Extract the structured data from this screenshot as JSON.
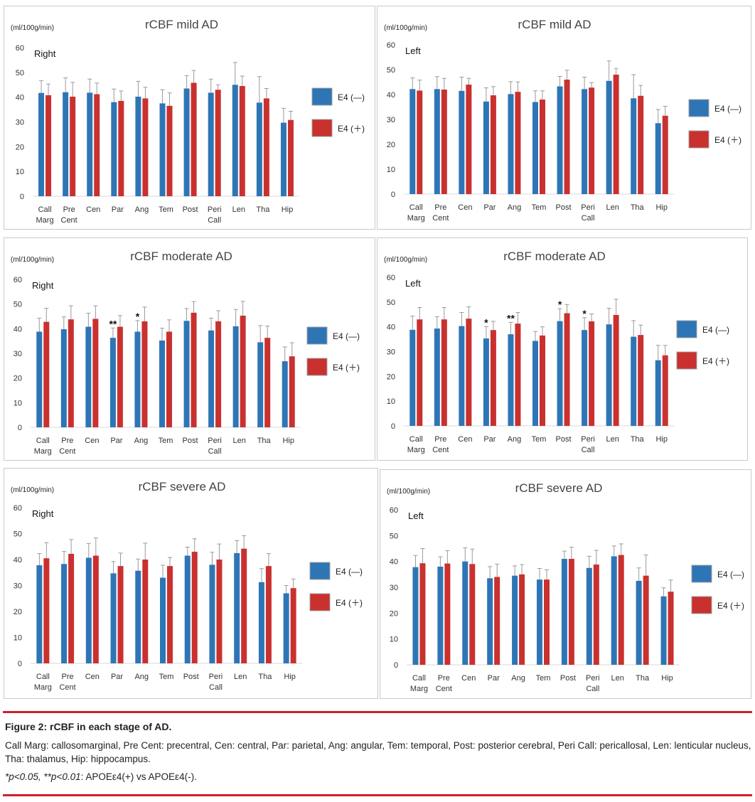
{
  "colors": {
    "e4_neg": "#2e75b6",
    "e4_pos": "#c9312f",
    "error_bar": "#9a9a9a",
    "axis": "#d9d9d9",
    "caption_rule": "#d0202a"
  },
  "chart_data": [
    {
      "type": "bar",
      "title": "rCBF mild AD",
      "unit": "(ml/100g/min)",
      "side": "Right",
      "ylim": [
        0,
        60
      ],
      "yticks": [
        0,
        10,
        20,
        30,
        40,
        50,
        60
      ],
      "categories": [
        [
          "Call",
          "Marg"
        ],
        [
          "Pre",
          "Cent"
        ],
        [
          "Cen"
        ],
        [
          "Par"
        ],
        [
          "Ang"
        ],
        [
          "Tem"
        ],
        [
          "Post"
        ],
        [
          "Peri",
          "Call"
        ],
        [
          "Len"
        ],
        [
          "Tha"
        ],
        [
          "Hip"
        ]
      ],
      "series": [
        {
          "name": "E4 (—)",
          "values": [
            41.7,
            42.0,
            41.8,
            38.0,
            40.2,
            37.5,
            43.5,
            41.8,
            45.0,
            37.8,
            29.7
          ],
          "errors": [
            5.0,
            5.8,
            5.5,
            5.3,
            6.2,
            5.5,
            5.2,
            5.5,
            9.0,
            10.5,
            5.8
          ]
        },
        {
          "name": "E4 (＋)",
          "values": [
            40.8,
            40.2,
            41.2,
            38.5,
            39.5,
            36.5,
            45.8,
            43.0,
            44.5,
            39.5,
            30.8
          ],
          "errors": [
            4.5,
            5.8,
            4.5,
            4.0,
            4.5,
            5.2,
            5.0,
            2.0,
            4.0,
            4.0,
            3.5
          ]
        }
      ],
      "annotations": []
    },
    {
      "type": "bar",
      "title": "rCBF mild AD",
      "unit": "(ml/100g/min)",
      "side": "Left",
      "ylim": [
        0,
        60
      ],
      "yticks": [
        0,
        10,
        20,
        30,
        40,
        50,
        60
      ],
      "categories": [
        [
          "Call",
          "Marg"
        ],
        [
          "Pre",
          "Cent"
        ],
        [
          "Cen"
        ],
        [
          "Par"
        ],
        [
          "Ang"
        ],
        [
          "Tem"
        ],
        [
          "Post"
        ],
        [
          "Peri",
          "Call"
        ],
        [
          "Len"
        ],
        [
          "Tha"
        ],
        [
          "Hip"
        ]
      ],
      "series": [
        {
          "name": "E4 (—)",
          "values": [
            42.2,
            42.2,
            41.5,
            37.2,
            40.2,
            37.0,
            43.3,
            42.2,
            45.5,
            38.5,
            28.5
          ],
          "errors": [
            4.5,
            5.0,
            5.5,
            5.5,
            5.0,
            4.5,
            4.0,
            4.8,
            8.0,
            9.5,
            5.5
          ]
        },
        {
          "name": "E4 (＋)",
          "values": [
            41.6,
            42.0,
            44.0,
            39.7,
            41.1,
            38.0,
            46.0,
            42.8,
            48.0,
            39.5,
            31.5
          ],
          "errors": [
            4.2,
            4.5,
            2.5,
            3.5,
            4.0,
            3.5,
            3.8,
            2.0,
            2.5,
            4.2,
            3.8
          ]
        }
      ],
      "annotations": []
    },
    {
      "type": "bar",
      "title": "rCBF moderate AD",
      "unit": "(ml/100g/min)",
      "side": "Right",
      "ylim": [
        0,
        60
      ],
      "yticks": [
        0,
        10,
        20,
        30,
        40,
        50,
        60
      ],
      "categories": [
        [
          "Call",
          "Marg"
        ],
        [
          "Pre",
          "Cent"
        ],
        [
          "Cen"
        ],
        [
          "Par"
        ],
        [
          "Ang"
        ],
        [
          "Tem"
        ],
        [
          "Post"
        ],
        [
          "Peri",
          "Call"
        ],
        [
          "Len"
        ],
        [
          "Tha"
        ],
        [
          "Hip"
        ]
      ],
      "series": [
        {
          "name": "E4 (—)",
          "values": [
            38.8,
            39.8,
            40.8,
            36.3,
            38.8,
            35.2,
            43.2,
            39.3,
            41.0,
            34.5,
            26.8
          ],
          "errors": [
            5.5,
            5.0,
            5.5,
            4.0,
            4.5,
            5.0,
            5.0,
            5.0,
            6.8,
            6.8,
            5.8
          ]
        },
        {
          "name": "E4 (＋)",
          "values": [
            42.8,
            43.8,
            44.0,
            40.8,
            43.0,
            38.8,
            46.5,
            43.0,
            45.3,
            36.3,
            28.8
          ],
          "errors": [
            5.5,
            5.5,
            5.3,
            4.5,
            5.8,
            4.8,
            4.5,
            4.3,
            5.8,
            4.8,
            5.5
          ]
        }
      ],
      "annotations": [
        {
          "index": 3,
          "label": "**"
        },
        {
          "index": 4,
          "label": "*"
        }
      ]
    },
    {
      "type": "bar",
      "title": "rCBF moderate AD",
      "unit": "(ml/100g/min)",
      "side": "Left",
      "ylim": [
        0,
        60
      ],
      "yticks": [
        0,
        10,
        20,
        30,
        40,
        50,
        60
      ],
      "categories": [
        [
          "Call",
          "Marg"
        ],
        [
          "Pre",
          "Cent"
        ],
        [
          "Cen"
        ],
        [
          "Par"
        ],
        [
          "Ang"
        ],
        [
          "Tem"
        ],
        [
          "Post"
        ],
        [
          "Peri",
          "Call"
        ],
        [
          "Len"
        ],
        [
          "Tha"
        ],
        [
          "Hip"
        ]
      ],
      "series": [
        {
          "name": "E4 (—)",
          "values": [
            38.8,
            39.3,
            40.3,
            35.3,
            37.0,
            34.3,
            42.3,
            38.7,
            41.0,
            36.0,
            26.5
          ],
          "errors": [
            5.5,
            4.8,
            5.5,
            4.8,
            4.8,
            3.8,
            5.0,
            5.0,
            6.5,
            6.5,
            6.0
          ]
        },
        {
          "name": "E4 (＋)",
          "values": [
            43.0,
            43.0,
            43.3,
            38.7,
            41.3,
            36.5,
            45.5,
            42.2,
            44.8,
            36.7,
            28.5
          ],
          "errors": [
            4.8,
            4.8,
            4.8,
            3.5,
            4.5,
            3.5,
            3.5,
            3.0,
            6.3,
            4.0,
            4.0
          ]
        }
      ],
      "annotations": [
        {
          "index": 3,
          "label": "*"
        },
        {
          "index": 4,
          "label": "**"
        },
        {
          "index": 6,
          "label": "*"
        },
        {
          "index": 7,
          "label": "*"
        }
      ]
    },
    {
      "type": "bar",
      "title": "rCBF severe AD",
      "unit": "(ml/100g/min)",
      "side": "Right",
      "ylim": [
        0,
        60
      ],
      "yticks": [
        0,
        10,
        20,
        30,
        40,
        50,
        60
      ],
      "categories": [
        [
          "Call",
          "Marg"
        ],
        [
          "Pre",
          "Cent"
        ],
        [
          "Cen"
        ],
        [
          "Par"
        ],
        [
          "Ang"
        ],
        [
          "Tem"
        ],
        [
          "Post"
        ],
        [
          "Peri",
          "Call"
        ],
        [
          "Len"
        ],
        [
          "Tha"
        ],
        [
          "Hip"
        ]
      ],
      "series": [
        {
          "name": "E4 (—)",
          "values": [
            37.8,
            38.3,
            40.7,
            34.7,
            35.7,
            33.0,
            41.5,
            38.0,
            42.5,
            31.3,
            27.0
          ],
          "errors": [
            4.5,
            4.8,
            5.5,
            4.5,
            4.5,
            4.8,
            3.3,
            4.8,
            4.8,
            5.2,
            3.0
          ]
        },
        {
          "name": "E4 (＋)",
          "values": [
            40.5,
            42.2,
            41.5,
            37.5,
            40.0,
            37.5,
            43.0,
            40.0,
            44.2,
            37.5,
            29.0
          ],
          "errors": [
            6.0,
            5.5,
            6.8,
            5.0,
            6.3,
            3.3,
            5.0,
            6.0,
            5.0,
            4.8,
            3.5
          ]
        }
      ],
      "annotations": []
    },
    {
      "type": "bar",
      "title": "rCBF severe AD",
      "unit": "(ml/100g/min)",
      "side": "Left",
      "ylim": [
        0,
        60
      ],
      "yticks": [
        0,
        10,
        20,
        30,
        40,
        50,
        60
      ],
      "categories": [
        [
          "Call",
          "Marg"
        ],
        [
          "Pre",
          "Cent"
        ],
        [
          "Cen"
        ],
        [
          "Par"
        ],
        [
          "Ang"
        ],
        [
          "Tem"
        ],
        [
          "Post"
        ],
        [
          "Peri",
          "Call"
        ],
        [
          "Len"
        ],
        [
          "Tha"
        ],
        [
          "Hip"
        ]
      ],
      "series": [
        {
          "name": "E4 (—)",
          "values": [
            37.8,
            38.0,
            40.0,
            33.5,
            34.5,
            33.0,
            41.0,
            37.5,
            42.0,
            32.5,
            26.5
          ],
          "errors": [
            4.5,
            3.8,
            5.3,
            4.5,
            3.8,
            4.3,
            3.0,
            4.5,
            4.0,
            5.0,
            3.3
          ]
        },
        {
          "name": "E4 (＋)",
          "values": [
            39.3,
            39.2,
            39.0,
            34.0,
            35.0,
            33.0,
            41.0,
            38.8,
            42.5,
            34.5,
            28.3
          ],
          "errors": [
            5.7,
            5.0,
            5.8,
            5.0,
            3.8,
            3.8,
            4.5,
            5.5,
            4.3,
            8.0,
            4.5
          ]
        }
      ],
      "annotations": []
    }
  ],
  "caption": {
    "title": "Figure 2: rCBF in each stage of AD.",
    "abbreviations": "Call Marg: callosomarginal, Pre Cent: precentral, Cen: central, Par: parietal, Ang: angular, Tem: temporal, Post: posterior cerebral, Peri Call: pericallosal, Len: lenticular nucleus, Tha: thalamus, Hip: hippocampus.",
    "note_italic": "*p<0.05, **p<0.01",
    "note_rest": ": APOEε4(+) vs APOEε4(-)."
  }
}
